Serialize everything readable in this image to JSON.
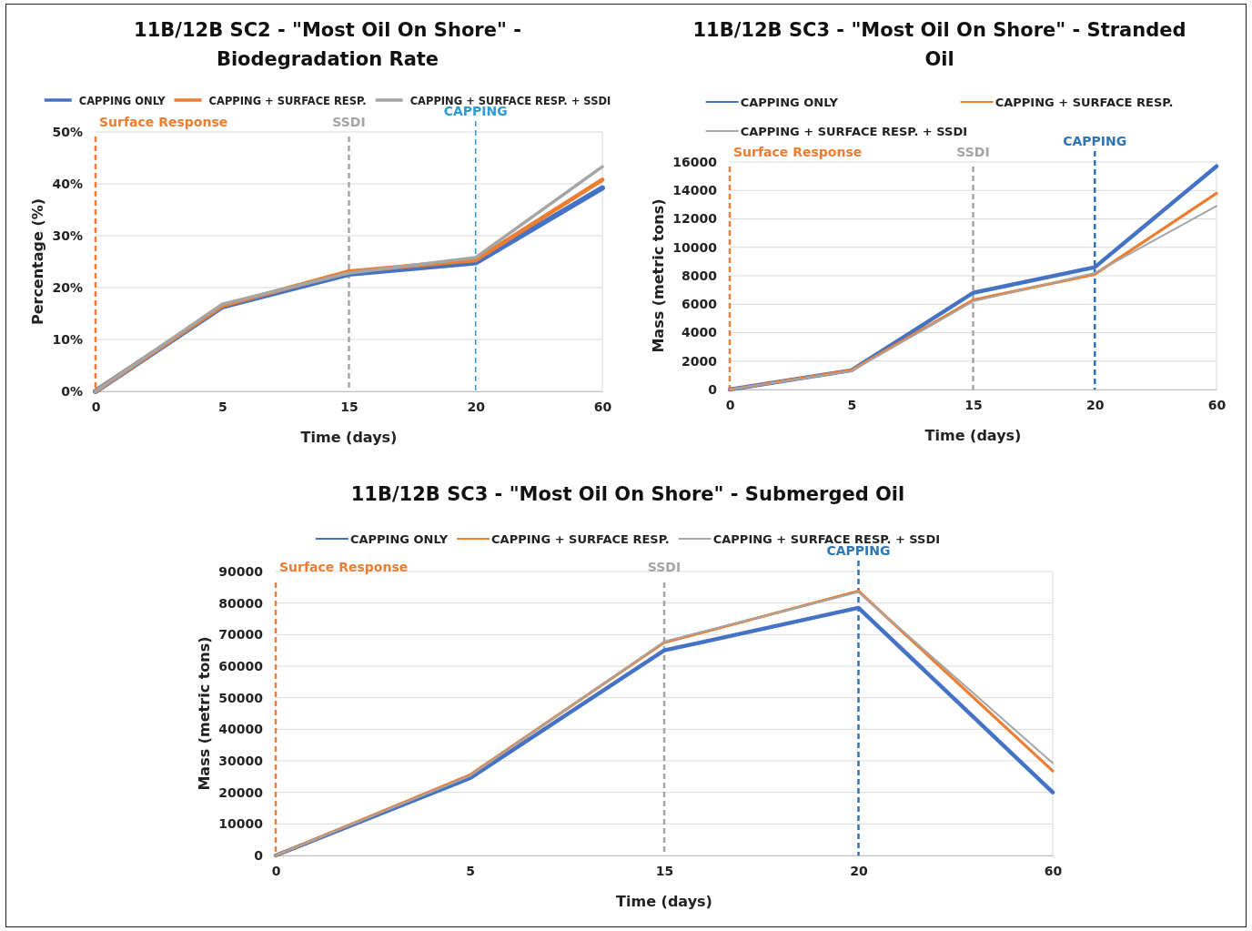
{
  "chart_data": [
    {
      "type": "line",
      "title": "11B/12B SC2 - \"Most Oil On Shore\" - Biodegradation Rate",
      "xlabel": "Time (days)",
      "ylabel": "Percentage (%)",
      "categories": [
        "0",
        "5",
        "15",
        "20",
        "60"
      ],
      "ylim": [
        0,
        50
      ],
      "yticks": [
        {
          "value": 0,
          "label": "0%"
        },
        {
          "value": 10,
          "label": "10%"
        },
        {
          "value": 20,
          "label": "20%"
        },
        {
          "value": 30,
          "label": "30%"
        },
        {
          "value": 40,
          "label": "40%"
        },
        {
          "value": 50,
          "label": "50%"
        }
      ],
      "grid": "y",
      "legend": "top",
      "marker": "none",
      "line_style": "solid",
      "series": [
        {
          "name": "CAPPING ONLY",
          "color": "#4472c4",
          "values": [
            0,
            16.3,
            22.6,
            24.8,
            39.2
          ]
        },
        {
          "name": "CAPPING + SURFACE RESP.",
          "color": "#ed7d31",
          "values": [
            0,
            16.5,
            23.1,
            25.3,
            40.8
          ]
        },
        {
          "name": "CAPPING + SURFACE RESP. + SSDI",
          "color": "#a5a5a5",
          "values": [
            0,
            16.8,
            22.8,
            25.8,
            43.3
          ]
        }
      ],
      "ref_lines": [
        {
          "axis": "x",
          "value": "0",
          "label": "Surface Response",
          "color": "#ed7d31",
          "line_style": "dashed"
        },
        {
          "axis": "x",
          "value": "15",
          "label": "SSDI",
          "color": "#a5a5a5",
          "line_style": "dashed"
        },
        {
          "axis": "x",
          "value": "20",
          "label": "CAPPING",
          "color": "#2e9bd6",
          "line_style": "dashed"
        }
      ]
    },
    {
      "type": "line",
      "title": "11B/12B SC3 - \"Most Oil On Shore\" - Stranded Oil",
      "xlabel": "Time (days)",
      "ylabel": "Mass (metric tons)",
      "categories": [
        "0",
        "5",
        "15",
        "20",
        "60"
      ],
      "ylim": [
        0,
        16000
      ],
      "yticks": [
        0,
        2000,
        4000,
        6000,
        8000,
        10000,
        12000,
        14000,
        16000
      ],
      "grid": "y",
      "legend": "top",
      "marker": "none",
      "line_style": "solid",
      "series": [
        {
          "name": "CAPPING ONLY",
          "color": "#4472c4",
          "values": [
            0,
            1350,
            6800,
            8600,
            15700
          ]
        },
        {
          "name": "CAPPING + SURFACE RESP.",
          "color": "#ed7d31",
          "values": [
            0,
            1350,
            6300,
            8100,
            13800
          ]
        },
        {
          "name": "CAPPING + SURFACE RESP. + SSDI",
          "color": "#a5a5a5",
          "values": [
            0,
            1300,
            6200,
            8200,
            12900
          ]
        }
      ],
      "ref_lines": [
        {
          "axis": "x",
          "value": "0",
          "label": "Surface Response",
          "color": "#ed7d31",
          "line_style": "dashed"
        },
        {
          "axis": "x",
          "value": "15",
          "label": "SSDI",
          "color": "#a5a5a5",
          "line_style": "dashed"
        },
        {
          "axis": "x",
          "value": "20",
          "label": "CAPPING",
          "color": "#2e75b6",
          "line_style": "dashed"
        }
      ]
    },
    {
      "type": "line",
      "title": "11B/12B SC3 - \"Most Oil On Shore\" - Submerged Oil",
      "xlabel": "Time (days)",
      "ylabel": "Mass (metric tons)",
      "categories": [
        "0",
        "5",
        "15",
        "20",
        "60"
      ],
      "ylim": [
        0,
        90000
      ],
      "yticks": [
        0,
        10000,
        20000,
        30000,
        40000,
        50000,
        60000,
        70000,
        80000,
        90000
      ],
      "grid": "y",
      "legend": "top",
      "marker": "none",
      "line_style": "solid",
      "series": [
        {
          "name": "CAPPING ONLY",
          "color": "#4472c4",
          "values": [
            0,
            24500,
            65000,
            78500,
            20000
          ]
        },
        {
          "name": "CAPPING + SURFACE RESP.",
          "color": "#ed7d31",
          "values": [
            0,
            25500,
            67500,
            83800,
            26800
          ]
        },
        {
          "name": "CAPPING + SURFACE RESP. + SSDI",
          "color": "#a5a5a5",
          "values": [
            0,
            25200,
            67800,
            83500,
            29300
          ]
        }
      ],
      "ref_lines": [
        {
          "axis": "x",
          "value": "0",
          "label": "Surface Response",
          "color": "#ed7d31",
          "line_style": "dashed"
        },
        {
          "axis": "x",
          "value": "15",
          "label": "SSDI",
          "color": "#a5a5a5",
          "line_style": "dashed"
        },
        {
          "axis": "x",
          "value": "20",
          "label": "CAPPING",
          "color": "#2e75b6",
          "line_style": "dashed"
        }
      ]
    }
  ]
}
